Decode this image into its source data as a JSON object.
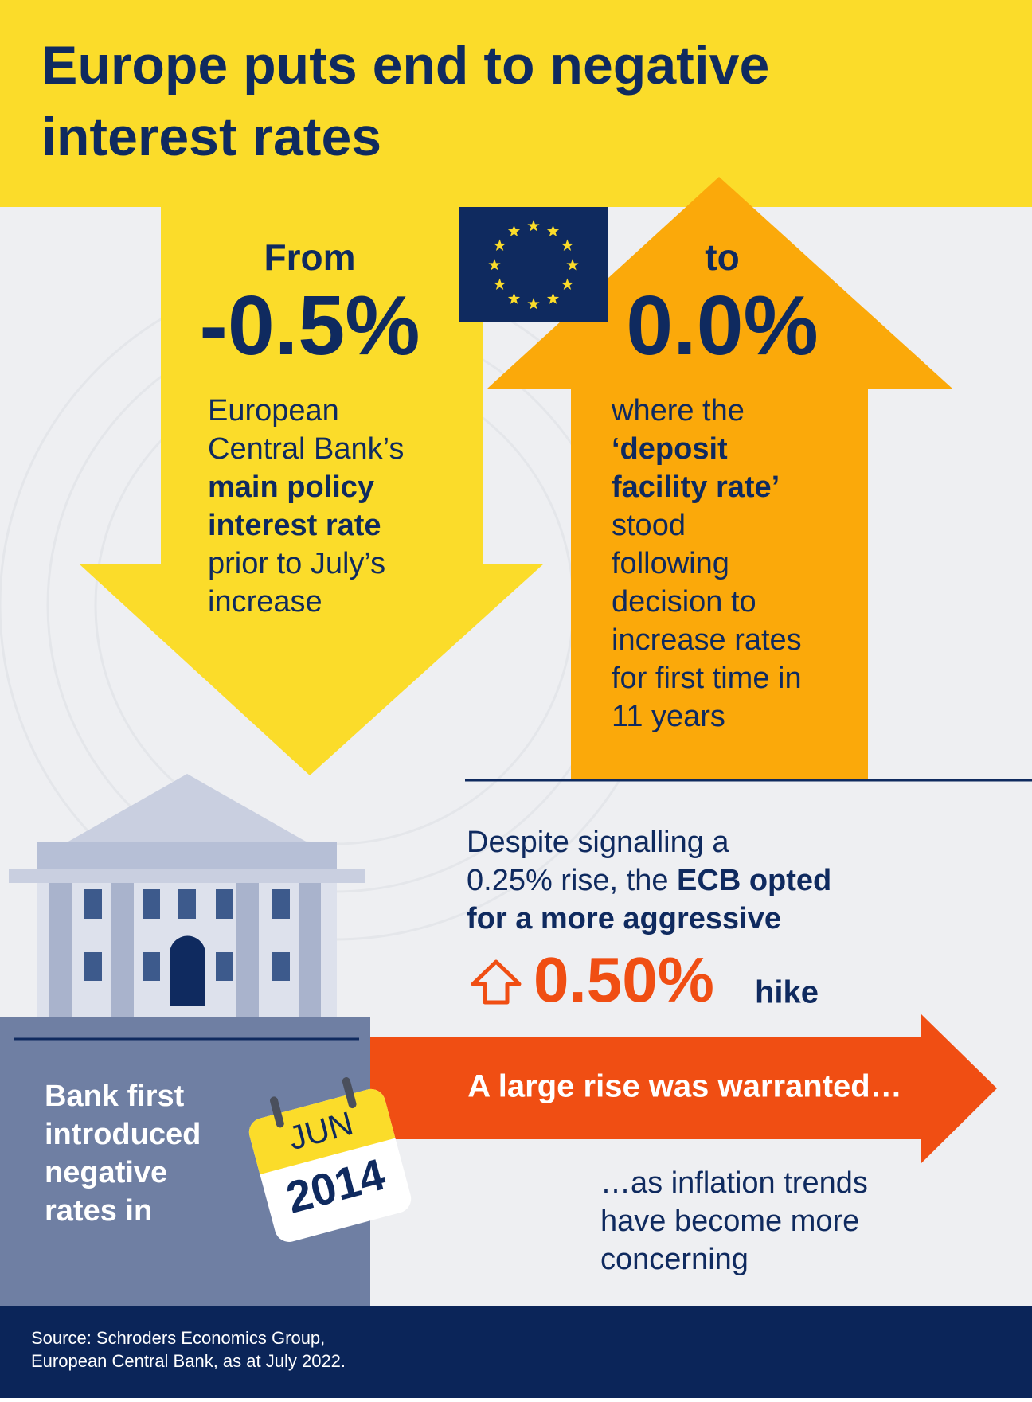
{
  "header": {
    "title_lines": [
      "Europe puts end to negative",
      "interest rates"
    ]
  },
  "from": {
    "label": "From",
    "value": "-0.5%",
    "lines": [
      [
        {
          "text": "European",
          "bold": false
        }
      ],
      [
        {
          "text": "Central Bank’s",
          "bold": false
        }
      ],
      [
        {
          "text": "main policy",
          "bold": true
        }
      ],
      [
        {
          "text": "interest rate",
          "bold": true
        }
      ],
      [
        {
          "text": "prior to July’s",
          "bold": false
        }
      ],
      [
        {
          "text": "increase",
          "bold": false
        }
      ]
    ]
  },
  "to": {
    "label": "to",
    "value": "0.0%",
    "lines": [
      [
        {
          "text": "where the",
          "bold": false
        }
      ],
      [
        {
          "text": "‘deposit",
          "bold": true
        }
      ],
      [
        {
          "text": "facility rate’",
          "bold": true
        }
      ],
      [
        {
          "text": "stood",
          "bold": false
        }
      ],
      [
        {
          "text": "following",
          "bold": false
        }
      ],
      [
        {
          "text": "decision to",
          "bold": false
        }
      ],
      [
        {
          "text": "increase rates",
          "bold": false
        }
      ],
      [
        {
          "text": "for first time in",
          "bold": false
        }
      ],
      [
        {
          "text": "11 years",
          "bold": false
        }
      ]
    ]
  },
  "hike_note": {
    "lines": [
      [
        {
          "text": "Despite signalling a",
          "bold": false
        }
      ],
      [
        {
          "text": "0.25% rise, the ",
          "bold": false
        },
        {
          "text": "ECB opted",
          "bold": true
        }
      ],
      [
        {
          "text": "for a more aggressive",
          "bold": true
        }
      ]
    ],
    "value": "0.50%",
    "unit": "hike"
  },
  "arrow_text": "A large rise was warranted…",
  "negative_rates": {
    "lines": [
      [
        {
          "text": "Bank first",
          "bold": true
        }
      ],
      [
        {
          "text": "introduced",
          "bold": true
        }
      ],
      [
        {
          "text": "negative",
          "bold": true
        }
      ],
      [
        {
          "text": "rates in",
          "bold": true
        }
      ]
    ],
    "calendar": {
      "month": "JUN",
      "year": "2014"
    }
  },
  "inflation_note": {
    "lines": [
      [
        {
          "text": "…as inflation trends",
          "bold": false
        }
      ],
      [
        {
          "text": "have become more",
          "bold": false
        }
      ],
      [
        {
          "text": "concerning",
          "bold": false
        }
      ]
    ]
  },
  "footer": {
    "source_lines": [
      [
        {
          "text": "Source: Schroders Economics Group,",
          "bold": false
        }
      ],
      [
        {
          "text": "European Central Bank, as at July 2022.",
          "bold": false
        }
      ]
    ]
  }
}
